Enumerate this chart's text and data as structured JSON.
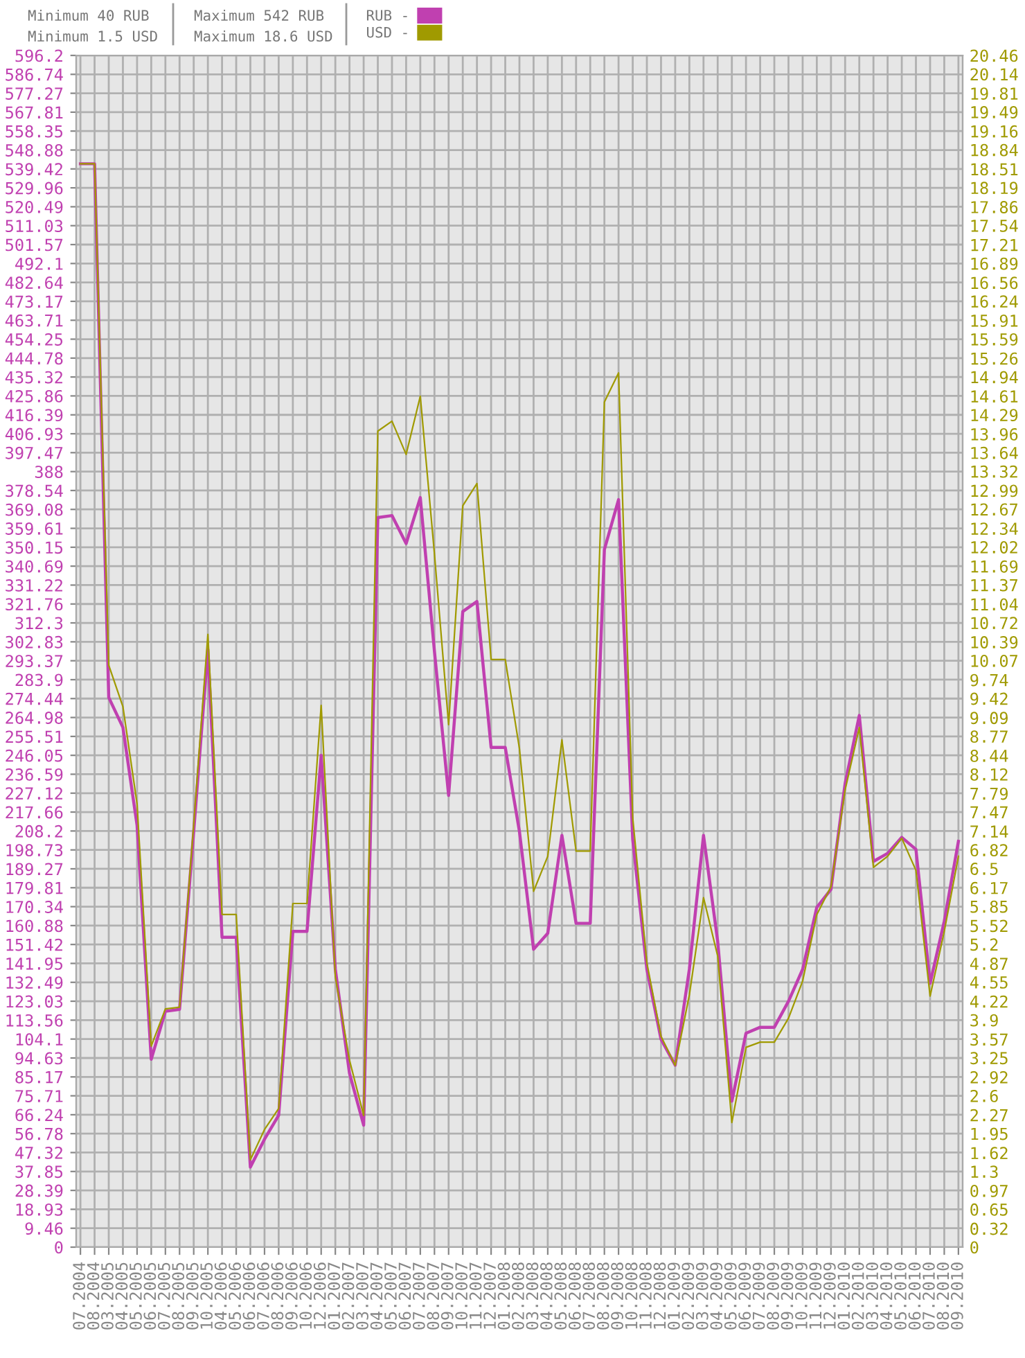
{
  "chart_data": {
    "type": "line",
    "annotations": [
      "Minimum 40 RUB",
      "Minimum 1.5 USD",
      "Maximum 542 RUB",
      "Maximum 18.6 USD"
    ],
    "categories": [
      "07.2004",
      "08.2004",
      "03.2005",
      "04.2005",
      "05.2005",
      "06.2005",
      "07.2005",
      "08.2005",
      "09.2005",
      "10.2005",
      "04.2006",
      "05.2006",
      "06.2006",
      "07.2006",
      "08.2006",
      "09.2006",
      "10.2006",
      "12.2006",
      "01.2007",
      "02.2007",
      "03.2007",
      "04.2007",
      "05.2007",
      "06.2007",
      "07.2007",
      "08.2007",
      "09.2007",
      "10.2007",
      "11.2007",
      "12.2007",
      "01.2008",
      "02.2008",
      "03.2008",
      "04.2008",
      "05.2008",
      "06.2008",
      "07.2008",
      "08.2008",
      "09.2008",
      "10.2008",
      "11.2008",
      "12.2008",
      "01.2009",
      "02.2009",
      "03.2009",
      "04.2009",
      "05.2009",
      "06.2009",
      "07.2009",
      "08.2009",
      "09.2009",
      "10.2009",
      "11.2009",
      "12.2009",
      "01.2010",
      "02.2010",
      "03.2010",
      "04.2010",
      "05.2010",
      "06.2010",
      "07.2010",
      "08.2010",
      "09.2010"
    ],
    "series": [
      {
        "name": "RUB -",
        "color": "#c040b0",
        "values": [
          542,
          542,
          275,
          260,
          211,
          94,
          118,
          119,
          208,
          299,
          155,
          155,
          40,
          54,
          66,
          158,
          158,
          246,
          139,
          87,
          61,
          365,
          366,
          352,
          375,
          298,
          226,
          318,
          323,
          250,
          250,
          208,
          149,
          157,
          206,
          162,
          162,
          349,
          374,
          204,
          139,
          104,
          91,
          139,
          206,
          153,
          73,
          107,
          110,
          110,
          123,
          139,
          170,
          179,
          232,
          266,
          193,
          197,
          205,
          199,
          132,
          163,
          203
        ]
      },
      {
        "name": "USD -",
        "color": "#a09a00",
        "axis": "y2",
        "values": [
          18.6,
          18.6,
          9.99,
          9.28,
          7.61,
          3.45,
          4.09,
          4.12,
          7.26,
          10.52,
          5.71,
          5.71,
          1.5,
          2.02,
          2.38,
          5.9,
          5.9,
          9.3,
          4.64,
          3.21,
          2.26,
          14.01,
          14.18,
          13.61,
          14.61,
          11.9,
          8.97,
          12.73,
          13.11,
          10.09,
          10.09,
          8.56,
          6.11,
          6.71,
          8.71,
          6.8,
          6.8,
          14.51,
          15.01,
          7.37,
          4.88,
          3.62,
          3.12,
          4.33,
          6.0,
          5.0,
          2.14,
          3.43,
          3.52,
          3.52,
          3.93,
          4.57,
          5.71,
          6.19,
          7.85,
          8.92,
          6.52,
          6.71,
          7.02,
          6.47,
          4.31,
          5.42,
          6.71
        ]
      }
    ],
    "ylim": [
      0,
      596.2
    ],
    "yticks": [
      0,
      9.46,
      18.93,
      28.39,
      37.85,
      47.32,
      56.78,
      66.24,
      75.71,
      85.17,
      94.63,
      104.1,
      113.56,
      123.03,
      132.49,
      141.95,
      151.42,
      160.88,
      170.34,
      179.81,
      189.27,
      198.73,
      208.2,
      217.66,
      227.12,
      236.59,
      246.05,
      255.51,
      264.98,
      274.44,
      283.9,
      293.37,
      302.83,
      312.3,
      321.76,
      331.22,
      340.69,
      350.15,
      359.61,
      369.08,
      378.54,
      388,
      397.47,
      406.93,
      416.39,
      425.86,
      435.32,
      444.78,
      454.25,
      463.71,
      473.17,
      482.64,
      492.1,
      501.57,
      511.03,
      520.49,
      529.96,
      539.42,
      548.88,
      558.35,
      567.81,
      577.27,
      586.74,
      596.2
    ],
    "y2lim": [
      0,
      20.46
    ],
    "y2ticks": [
      0,
      0.32,
      0.65,
      0.97,
      1.3,
      1.62,
      1.95,
      2.27,
      2.6,
      2.92,
      3.25,
      3.57,
      3.9,
      4.22,
      4.55,
      4.87,
      5.2,
      5.52,
      5.85,
      6.17,
      6.5,
      6.82,
      7.14,
      7.47,
      7.79,
      8.12,
      8.44,
      8.77,
      9.09,
      9.42,
      9.74,
      10.07,
      10.39,
      10.72,
      11.04,
      11.37,
      11.69,
      12.02,
      12.34,
      12.67,
      12.99,
      13.32,
      13.64,
      13.96,
      14.29,
      14.61,
      14.94,
      15.26,
      15.59,
      15.91,
      16.24,
      16.56,
      16.89,
      17.21,
      17.54,
      17.86,
      18.19,
      18.51,
      18.84,
      19.16,
      19.49,
      19.81,
      20.14,
      20.46
    ],
    "grid": true,
    "legend": "top",
    "marker": "none",
    "line_style": "solid"
  }
}
